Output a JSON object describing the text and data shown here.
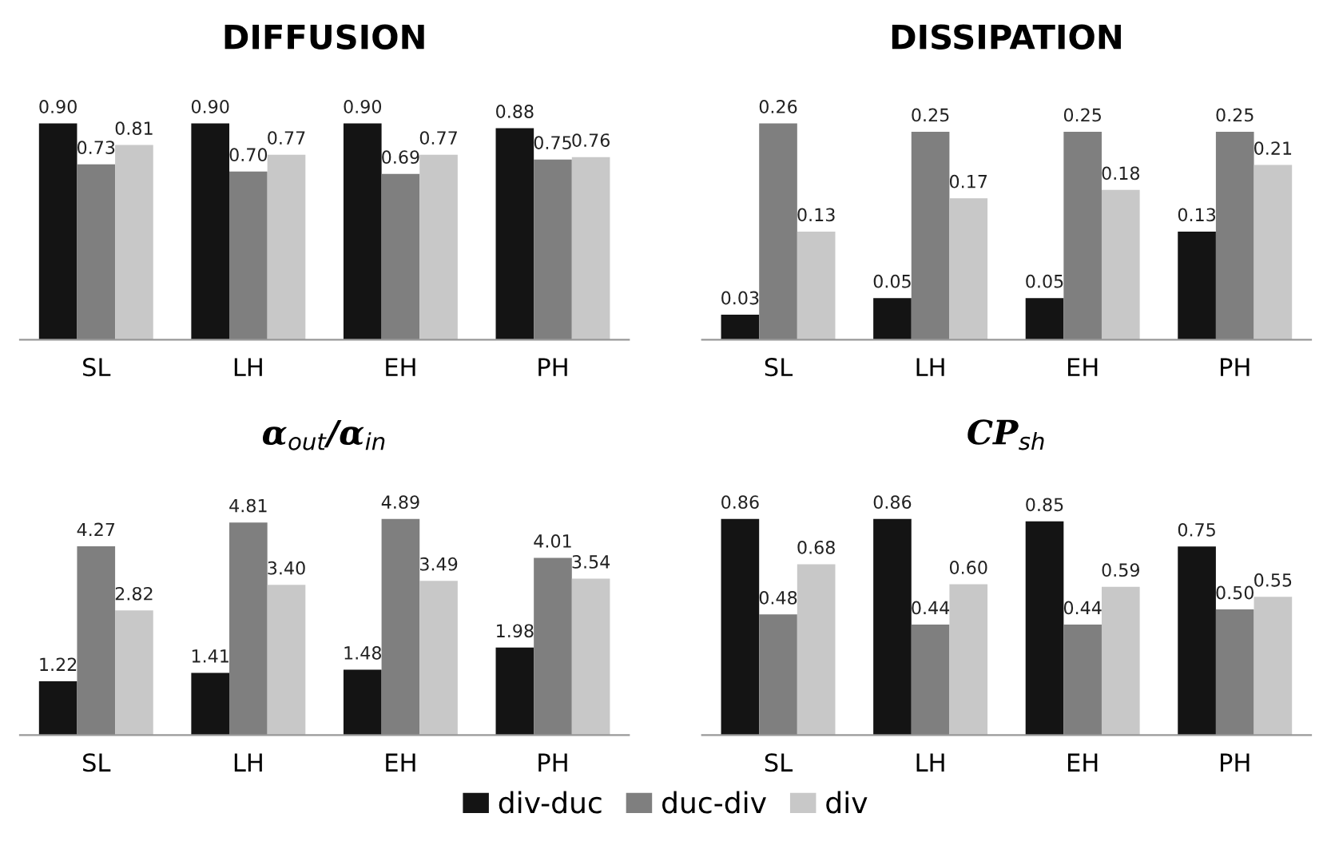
{
  "chart_data": [
    {
      "type": "bar",
      "title": "DIFFUSION",
      "categories": [
        "SL",
        "LH",
        "EH",
        "PH"
      ],
      "legend": "bottom",
      "series": [
        {
          "name": "div-duc",
          "color": "#141414",
          "values": [
            0.9,
            0.9,
            0.9,
            0.88
          ],
          "value_labels": [
            "0.90",
            "0.90",
            "0.90",
            "0.88"
          ]
        },
        {
          "name": "duc-div",
          "color": "#7f7f7f",
          "values": [
            0.73,
            0.7,
            0.69,
            0.75
          ],
          "value_labels": [
            "0.73",
            "0.70",
            "0.69",
            "0.75"
          ]
        },
        {
          "name": "div",
          "color": "#c8c8c8",
          "values": [
            0.81,
            0.77,
            0.77,
            0.76
          ],
          "value_labels": [
            "0.81",
            "0.77",
            "0.77",
            "0.76"
          ]
        }
      ]
    },
    {
      "type": "bar",
      "title": "DISSIPATION",
      "categories": [
        "SL",
        "LH",
        "EH",
        "PH"
      ],
      "legend": "bottom",
      "series": [
        {
          "name": "div-duc",
          "color": "#141414",
          "values": [
            0.03,
            0.05,
            0.05,
            0.13
          ],
          "value_labels": [
            "0.03",
            "0.05",
            "0.05",
            "0.13"
          ]
        },
        {
          "name": "duc-div",
          "color": "#7f7f7f",
          "values": [
            0.26,
            0.25,
            0.25,
            0.25
          ],
          "value_labels": [
            "0.26",
            "0.25",
            "0.25",
            "0.25"
          ]
        },
        {
          "name": "div",
          "color": "#c8c8c8",
          "values": [
            0.13,
            0.17,
            0.18,
            0.21
          ],
          "value_labels": [
            "0.13",
            "0.17",
            "0.18",
            "0.21"
          ]
        }
      ]
    },
    {
      "type": "bar",
      "title": "α$_{out}$/α$_{in}$",
      "categories": [
        "SL",
        "LH",
        "EH",
        "PH"
      ],
      "legend": "bottom",
      "series": [
        {
          "name": "div-duc",
          "color": "#141414",
          "values": [
            1.22,
            1.41,
            1.48,
            1.98
          ],
          "value_labels": [
            "1.22",
            "1.41",
            "1.48",
            "1.98"
          ]
        },
        {
          "name": "duc-div",
          "color": "#7f7f7f",
          "values": [
            4.27,
            4.81,
            4.89,
            4.01
          ],
          "value_labels": [
            "4.27",
            "4.81",
            "4.89",
            "4.01"
          ]
        },
        {
          "name": "div",
          "color": "#c8c8c8",
          "values": [
            2.82,
            3.4,
            3.49,
            3.54
          ],
          "value_labels": [
            "2.82",
            "3.40",
            "3.49",
            "3.54"
          ]
        }
      ]
    },
    {
      "type": "bar",
      "title": "CP$_{sh}$",
      "categories": [
        "SL",
        "LH",
        "EH",
        "PH"
      ],
      "legend": "bottom",
      "series": [
        {
          "name": "div-duc",
          "color": "#141414",
          "values": [
            0.86,
            0.86,
            0.85,
            0.75
          ],
          "value_labels": [
            "0.86",
            "0.86",
            "0.85",
            "0.75"
          ]
        },
        {
          "name": "duc-div",
          "color": "#7f7f7f",
          "values": [
            0.48,
            0.44,
            0.44,
            0.5
          ],
          "value_labels": [
            "0.48",
            "0.44",
            "0.44",
            "0.50"
          ]
        },
        {
          "name": "div",
          "color": "#c8c8c8",
          "values": [
            0.68,
            0.6,
            0.59,
            0.55
          ],
          "value_labels": [
            "0.68",
            "0.60",
            "0.59",
            "0.55"
          ]
        }
      ]
    }
  ]
}
